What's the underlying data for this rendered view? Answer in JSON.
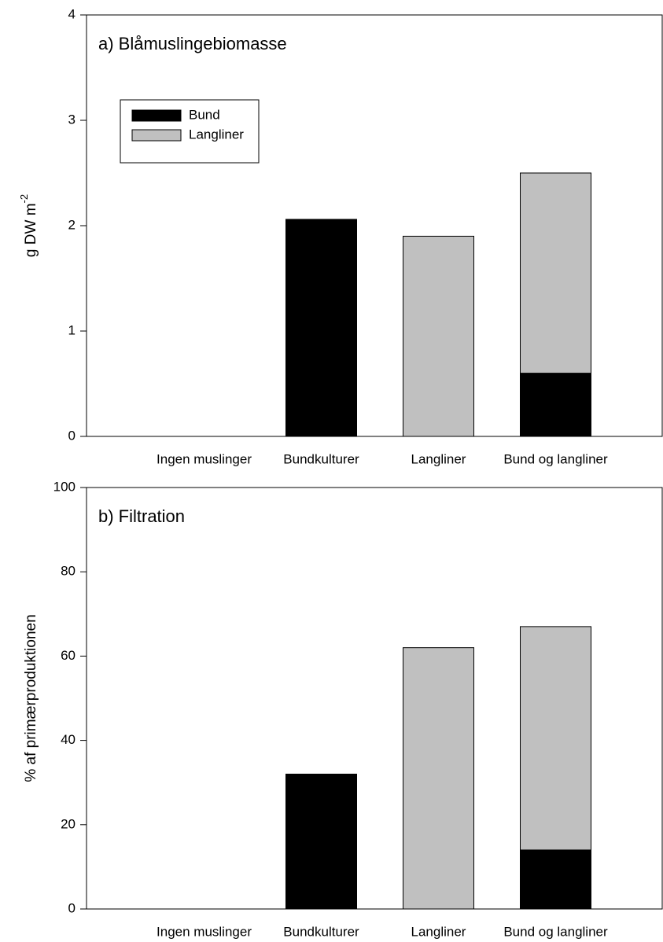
{
  "chart_data": [
    {
      "type": "bar",
      "stacked": true,
      "title": "a) Blåmuslingebiomasse",
      "ylabel": "g DW m",
      "ylabel_superscript": "-2",
      "categories": [
        "Ingen muslinger",
        "Bundkulturer",
        "Langliner",
        "Bund og langliner"
      ],
      "series": [
        {
          "name": "Bund",
          "color": "#000000",
          "values": [
            0,
            2.06,
            0,
            0.6
          ]
        },
        {
          "name": "Langliner",
          "color": "#c0c0c0",
          "values": [
            0,
            0,
            1.9,
            1.9
          ]
        }
      ],
      "ylim": [
        0,
        4
      ],
      "yticks": [
        0,
        1,
        2,
        3,
        4
      ],
      "legend": "upper left"
    },
    {
      "type": "bar",
      "stacked": true,
      "title": "b) Filtration",
      "ylabel": "% af primærproduktionen",
      "categories": [
        "Ingen muslinger",
        "Bundkulturer",
        "Langliner",
        "Bund og langliner"
      ],
      "series": [
        {
          "name": "Bund",
          "color": "#000000",
          "values": [
            0,
            32,
            0,
            14
          ]
        },
        {
          "name": "Langliner",
          "color": "#c0c0c0",
          "values": [
            0,
            0,
            62,
            53
          ]
        }
      ],
      "ylim": [
        0,
        100
      ],
      "yticks": [
        0,
        20,
        40,
        60,
        80,
        100
      ]
    }
  ]
}
